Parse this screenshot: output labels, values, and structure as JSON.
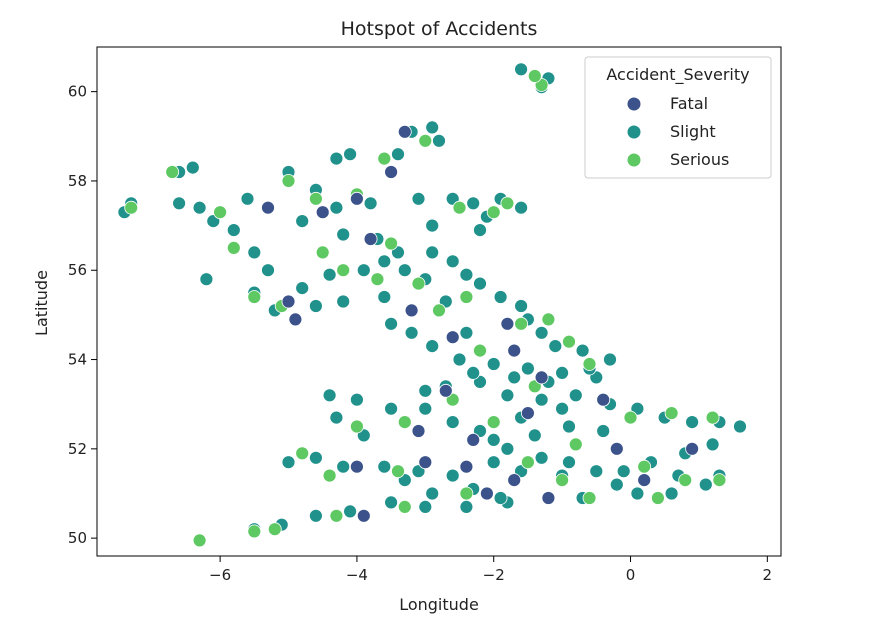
{
  "chart_data": {
    "type": "scatter",
    "title": "Hotspot of Accidents",
    "xlabel": "Longitude",
    "ylabel": "Latitude",
    "xlim": [
      -7.8,
      2.2
    ],
    "ylim": [
      49.6,
      61.0
    ],
    "xticks": [
      -6,
      -4,
      -2,
      0,
      2
    ],
    "xtick_labels": [
      "−6",
      "−4",
      "−2",
      "0",
      "2"
    ],
    "yticks": [
      50,
      52,
      54,
      56,
      58,
      60
    ],
    "ytick_labels": [
      "50",
      "52",
      "54",
      "56",
      "58",
      "60"
    ],
    "grid": false,
    "legend": {
      "title": "Accident_Severity",
      "placement": "top-right",
      "entries": [
        "Fatal",
        "Slight",
        "Serious"
      ]
    },
    "series": [
      {
        "name": "Slight",
        "color": "#21918c",
        "points": [
          [
            -7.4,
            57.3
          ],
          [
            -7.3,
            57.5
          ],
          [
            -6.6,
            58.2
          ],
          [
            -6.4,
            58.3
          ],
          [
            -6.6,
            57.5
          ],
          [
            -6.3,
            57.4
          ],
          [
            -6.1,
            57.1
          ],
          [
            -6.2,
            55.8
          ],
          [
            -5.8,
            56.9
          ],
          [
            -5.6,
            57.6
          ],
          [
            -5.5,
            56.4
          ],
          [
            -5.3,
            56.0
          ],
          [
            -5.5,
            55.5
          ],
          [
            -5.2,
            55.1
          ],
          [
            -5.0,
            58.2
          ],
          [
            -4.6,
            57.8
          ],
          [
            -4.3,
            58.5
          ],
          [
            -4.1,
            58.6
          ],
          [
            -3.4,
            58.6
          ],
          [
            -3.2,
            59.1
          ],
          [
            -2.9,
            59.2
          ],
          [
            -2.8,
            58.9
          ],
          [
            -3.1,
            57.6
          ],
          [
            -2.6,
            57.6
          ],
          [
            -2.3,
            57.5
          ],
          [
            -2.1,
            57.2
          ],
          [
            -1.9,
            57.6
          ],
          [
            -1.6,
            57.4
          ],
          [
            -3.8,
            57.5
          ],
          [
            -4.3,
            57.4
          ],
          [
            -4.8,
            57.1
          ],
          [
            -4.2,
            56.8
          ],
          [
            -3.7,
            56.7
          ],
          [
            -3.4,
            56.4
          ],
          [
            -2.9,
            56.4
          ],
          [
            -2.6,
            56.2
          ],
          [
            -3.3,
            56.0
          ],
          [
            -3.9,
            56.0
          ],
          [
            -4.4,
            55.9
          ],
          [
            -4.8,
            55.6
          ],
          [
            -4.6,
            55.2
          ],
          [
            -4.2,
            55.3
          ],
          [
            -3.6,
            55.4
          ],
          [
            -3.2,
            55.1
          ],
          [
            -2.7,
            55.3
          ],
          [
            -2.2,
            55.7
          ],
          [
            -1.9,
            55.4
          ],
          [
            -1.6,
            55.2
          ],
          [
            -1.5,
            54.9
          ],
          [
            -1.3,
            54.6
          ],
          [
            -1.1,
            54.3
          ],
          [
            -0.7,
            54.2
          ],
          [
            -0.3,
            54.0
          ],
          [
            -0.5,
            53.6
          ],
          [
            -1.0,
            53.7
          ],
          [
            -1.5,
            53.8
          ],
          [
            -2.0,
            53.9
          ],
          [
            -2.5,
            54.0
          ],
          [
            -2.9,
            54.3
          ],
          [
            -3.2,
            54.6
          ],
          [
            -3.5,
            54.8
          ],
          [
            -2.4,
            54.6
          ],
          [
            -2.2,
            53.5
          ],
          [
            -2.7,
            53.4
          ],
          [
            -3.0,
            53.3
          ],
          [
            -1.8,
            53.2
          ],
          [
            -1.3,
            53.1
          ],
          [
            -0.8,
            53.2
          ],
          [
            -0.3,
            53.0
          ],
          [
            0.1,
            52.9
          ],
          [
            0.5,
            52.7
          ],
          [
            0.9,
            52.6
          ],
          [
            1.3,
            52.6
          ],
          [
            1.6,
            52.5
          ],
          [
            1.2,
            52.1
          ],
          [
            0.8,
            51.9
          ],
          [
            0.3,
            51.7
          ],
          [
            -0.1,
            51.5
          ],
          [
            -0.5,
            51.5
          ],
          [
            -0.9,
            51.7
          ],
          [
            -1.3,
            51.8
          ],
          [
            -1.8,
            52.0
          ],
          [
            -2.2,
            52.4
          ],
          [
            -2.6,
            52.6
          ],
          [
            -3.0,
            52.9
          ],
          [
            -3.5,
            52.9
          ],
          [
            -4.0,
            53.1
          ],
          [
            -4.4,
            53.2
          ],
          [
            -4.3,
            52.7
          ],
          [
            -3.9,
            52.3
          ],
          [
            -4.6,
            51.8
          ],
          [
            -5.0,
            51.7
          ],
          [
            -4.2,
            51.6
          ],
          [
            -3.6,
            51.6
          ],
          [
            -3.1,
            51.5
          ],
          [
            -2.6,
            51.4
          ],
          [
            -2.3,
            51.1
          ],
          [
            -2.9,
            51.0
          ],
          [
            -3.5,
            50.8
          ],
          [
            -4.1,
            50.6
          ],
          [
            -4.6,
            50.5
          ],
          [
            -5.1,
            50.3
          ],
          [
            -5.5,
            50.2
          ],
          [
            -3.0,
            50.7
          ],
          [
            -2.4,
            50.7
          ],
          [
            -1.8,
            50.8
          ],
          [
            -1.2,
            50.9
          ],
          [
            -0.7,
            50.9
          ],
          [
            0.1,
            51.0
          ],
          [
            0.6,
            51.0
          ],
          [
            1.1,
            51.2
          ],
          [
            1.3,
            51.4
          ],
          [
            0.7,
            51.4
          ],
          [
            -0.2,
            51.2
          ],
          [
            -1.0,
            51.4
          ],
          [
            -1.6,
            51.5
          ],
          [
            -2.0,
            51.7
          ],
          [
            -1.4,
            52.3
          ],
          [
            -0.9,
            52.5
          ],
          [
            -0.4,
            52.4
          ],
          [
            -1.0,
            52.9
          ],
          [
            -1.6,
            52.7
          ],
          [
            -2.0,
            52.2
          ],
          [
            -1.2,
            53.5
          ],
          [
            -1.7,
            53.6
          ],
          [
            -2.3,
            53.7
          ],
          [
            -0.6,
            53.8
          ],
          [
            -1.9,
            50.9
          ],
          [
            -3.3,
            51.3
          ],
          [
            -1.2,
            60.3
          ],
          [
            -1.3,
            60.1
          ],
          [
            -1.6,
            60.5
          ],
          [
            -2.4,
            55.9
          ],
          [
            -3.0,
            55.8
          ],
          [
            -3.6,
            56.2
          ],
          [
            -2.2,
            56.9
          ],
          [
            -2.9,
            57.0
          ]
        ]
      },
      {
        "name": "Serious",
        "color": "#5ec962",
        "points": [
          [
            -7.3,
            57.4
          ],
          [
            -6.7,
            58.2
          ],
          [
            -6.3,
            49.95
          ],
          [
            -6.0,
            57.3
          ],
          [
            -5.8,
            56.5
          ],
          [
            -5.5,
            55.4
          ],
          [
            -5.1,
            55.2
          ],
          [
            -5.0,
            58.0
          ],
          [
            -4.6,
            57.6
          ],
          [
            -4.0,
            57.7
          ],
          [
            -3.6,
            58.5
          ],
          [
            -3.0,
            58.9
          ],
          [
            -2.5,
            57.4
          ],
          [
            -2.0,
            57.3
          ],
          [
            -1.8,
            57.5
          ],
          [
            -3.5,
            56.6
          ],
          [
            -4.2,
            56.0
          ],
          [
            -3.1,
            55.7
          ],
          [
            -2.4,
            55.4
          ],
          [
            -1.6,
            54.8
          ],
          [
            -0.9,
            54.4
          ],
          [
            -0.6,
            53.9
          ],
          [
            -1.4,
            53.4
          ],
          [
            -2.6,
            53.1
          ],
          [
            -3.3,
            52.6
          ],
          [
            -4.0,
            52.5
          ],
          [
            -4.8,
            51.9
          ],
          [
            -4.4,
            51.4
          ],
          [
            -3.4,
            51.5
          ],
          [
            -2.4,
            51.0
          ],
          [
            -3.3,
            50.7
          ],
          [
            -4.3,
            50.5
          ],
          [
            -5.2,
            50.2
          ],
          [
            -5.5,
            50.15
          ],
          [
            -0.6,
            50.9
          ],
          [
            0.4,
            50.9
          ],
          [
            0.8,
            51.3
          ],
          [
            1.3,
            51.3
          ],
          [
            1.2,
            52.7
          ],
          [
            0.6,
            52.8
          ],
          [
            0.0,
            52.7
          ],
          [
            -0.4,
            53.1
          ],
          [
            -0.8,
            52.1
          ],
          [
            -1.5,
            51.7
          ],
          [
            -2.0,
            52.6
          ],
          [
            -1.0,
            51.3
          ],
          [
            0.2,
            51.6
          ],
          [
            -1.3,
            60.15
          ],
          [
            -1.4,
            60.35
          ],
          [
            -2.2,
            54.2
          ],
          [
            -1.2,
            54.9
          ],
          [
            -2.8,
            55.1
          ],
          [
            -3.7,
            55.8
          ],
          [
            -4.5,
            56.4
          ]
        ]
      },
      {
        "name": "Fatal",
        "color": "#3b528b",
        "points": [
          [
            -3.3,
            59.1
          ],
          [
            -3.5,
            58.2
          ],
          [
            -4.0,
            57.6
          ],
          [
            -5.3,
            57.4
          ],
          [
            -4.5,
            57.3
          ],
          [
            -3.8,
            56.7
          ],
          [
            -5.0,
            55.3
          ],
          [
            -4.9,
            54.9
          ],
          [
            -3.2,
            55.1
          ],
          [
            -2.6,
            54.5
          ],
          [
            -1.8,
            54.8
          ],
          [
            -1.7,
            54.2
          ],
          [
            -2.7,
            53.3
          ],
          [
            -1.3,
            53.6
          ],
          [
            -0.4,
            53.1
          ],
          [
            -3.1,
            52.4
          ],
          [
            -2.3,
            52.2
          ],
          [
            -1.5,
            52.8
          ],
          [
            -3.0,
            51.7
          ],
          [
            -2.4,
            51.6
          ],
          [
            -1.7,
            51.3
          ],
          [
            -4.0,
            51.6
          ],
          [
            -3.9,
            50.5
          ],
          [
            -2.1,
            51.0
          ],
          [
            -1.2,
            50.9
          ],
          [
            0.2,
            51.3
          ],
          [
            0.9,
            52.0
          ],
          [
            -0.2,
            52.0
          ]
        ]
      }
    ]
  }
}
